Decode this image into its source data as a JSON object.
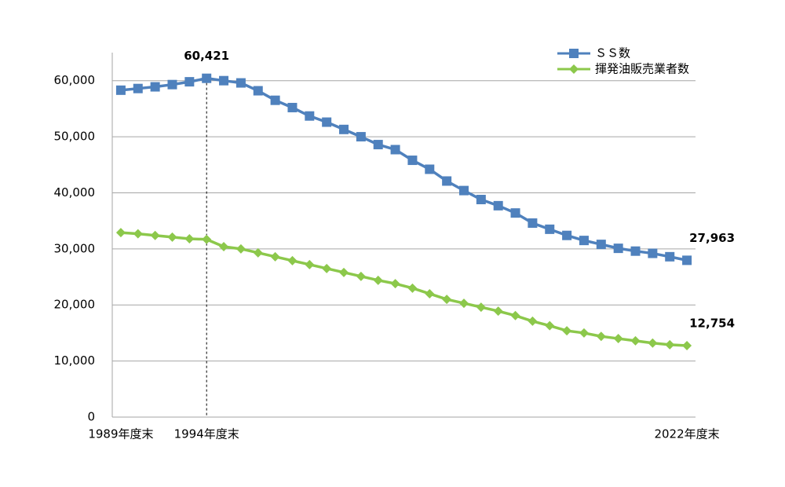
{
  "chart_data": {
    "type": "line",
    "categories": [
      "1989年度末",
      null,
      null,
      null,
      null,
      "1994年度末",
      null,
      null,
      null,
      null,
      null,
      null,
      null,
      null,
      null,
      null,
      null,
      null,
      null,
      null,
      null,
      null,
      null,
      null,
      null,
      null,
      null,
      null,
      null,
      null,
      null,
      null,
      null,
      "2022年度末"
    ],
    "series": [
      {
        "name": "ＳＳ数",
        "color": "#4f81bd",
        "marker": "square",
        "values": [
          58300,
          58600,
          58900,
          59300,
          59800,
          60421,
          60000,
          59600,
          58200,
          56500,
          55200,
          53700,
          52600,
          51300,
          50000,
          48600,
          47700,
          45800,
          44200,
          42100,
          40400,
          38800,
          37700,
          36400,
          34600,
          33500,
          32400,
          31500,
          30800,
          30100,
          29600,
          29200,
          28600,
          27963
        ],
        "value_labels": [
          null,
          null,
          null,
          null,
          null,
          "60,421",
          null,
          null,
          null,
          null,
          null,
          null,
          null,
          null,
          null,
          null,
          null,
          null,
          null,
          null,
          null,
          null,
          null,
          null,
          null,
          null,
          null,
          null,
          null,
          null,
          null,
          null,
          null,
          "27,963"
        ]
      },
      {
        "name": "揮発油販売業者数",
        "color": "#8cc84b",
        "marker": "diamond",
        "values": [
          32900,
          32700,
          32400,
          32100,
          31800,
          31700,
          30400,
          30000,
          29300,
          28600,
          27900,
          27200,
          26500,
          25800,
          25100,
          24400,
          23800,
          23000,
          22000,
          21000,
          20300,
          19600,
          18900,
          18100,
          17100,
          16300,
          15400,
          15000,
          14400,
          14000,
          13600,
          13200,
          12900,
          12754
        ],
        "value_labels": [
          null,
          null,
          null,
          null,
          null,
          null,
          null,
          null,
          null,
          null,
          null,
          null,
          null,
          null,
          null,
          null,
          null,
          null,
          null,
          null,
          null,
          null,
          null,
          null,
          null,
          null,
          null,
          null,
          null,
          null,
          null,
          null,
          null,
          "12,754"
        ]
      }
    ],
    "ylim": [
      0,
      65000
    ],
    "yticks": [
      0,
      {
        "value": 10000,
        "label": "10,000"
      },
      {
        "value": 20000,
        "label": "20,000"
      },
      {
        "value": 30000,
        "label": "30,000"
      },
      {
        "value": 40000,
        "label": "40,000"
      },
      {
        "value": 50000,
        "label": "50,000"
      },
      {
        "value": 60000,
        "label": "60,000"
      }
    ],
    "grid": true,
    "legend": "top-right"
  }
}
